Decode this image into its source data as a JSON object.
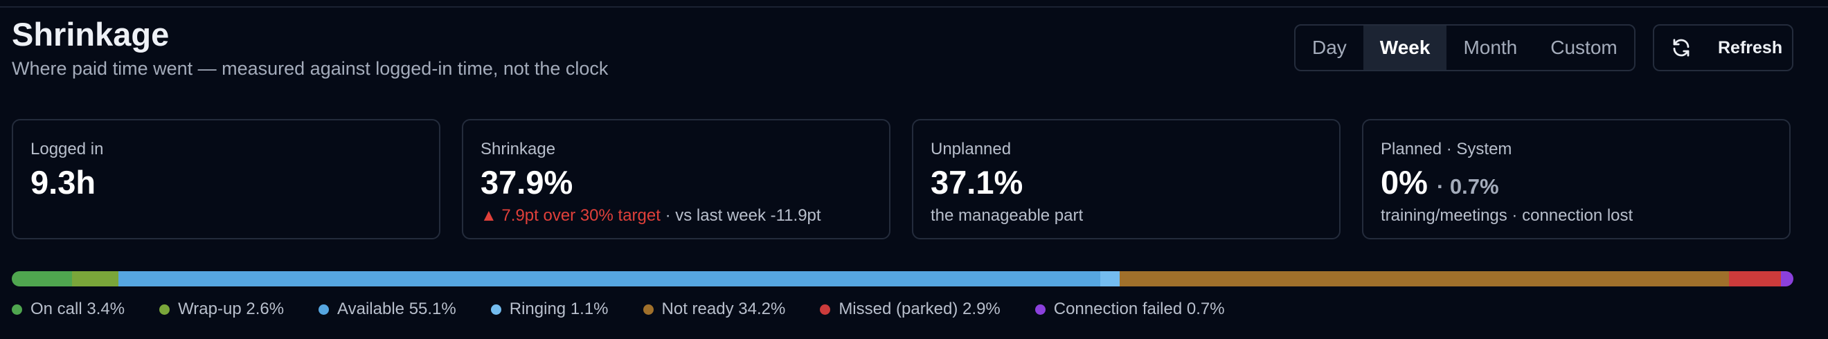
{
  "header": {
    "title": "Shrinkage",
    "subtitle": "Where paid time went — measured against logged-in time, not the clock"
  },
  "range_buttons": [
    {
      "label": "Day",
      "selected": false
    },
    {
      "label": "Week",
      "selected": true
    },
    {
      "label": "Month",
      "selected": false
    },
    {
      "label": "Custom",
      "selected": false
    }
  ],
  "refresh": "Refresh",
  "cards": [
    {
      "label": "Logged in",
      "value": "9.3h",
      "value_extra": null,
      "sub_alert": null,
      "sub": null
    },
    {
      "label": "Shrinkage",
      "value": "37.9%",
      "value_extra": null,
      "sub_alert": "▲ 7.9pt over 30% target",
      "sub": " · vs last week -11.9pt"
    },
    {
      "label": "Unplanned",
      "value": "37.1%",
      "value_extra": null,
      "sub_alert": null,
      "sub": "the manageable part"
    },
    {
      "label": "Planned · System",
      "value": "0%",
      "value_extra": "· 0.7%",
      "sub_alert": null,
      "sub": "training/meetings · connection lost"
    }
  ],
  "breakdown": [
    {
      "name": "On call",
      "value": 3.4,
      "value_label": "3.4%",
      "color": "#4fa64f"
    },
    {
      "name": "Wrap-up",
      "value": 2.6,
      "value_label": "2.6%",
      "color": "#7aa63a"
    },
    {
      "name": "Available",
      "value": 55.1,
      "value_label": "55.1%",
      "color": "#56a6e0"
    },
    {
      "name": "Ringing",
      "value": 1.1,
      "value_label": "1.1%",
      "color": "#74bcef"
    },
    {
      "name": "Not ready",
      "value": 34.2,
      "value_label": "34.2%",
      "color": "#a0702b"
    },
    {
      "name": "Missed (parked)",
      "value": 2.9,
      "value_label": "2.9%",
      "color": "#cc3b3b"
    },
    {
      "name": "Connection failed",
      "value": 0.7,
      "value_label": "0.7%",
      "color": "#8b40dc"
    }
  ]
}
